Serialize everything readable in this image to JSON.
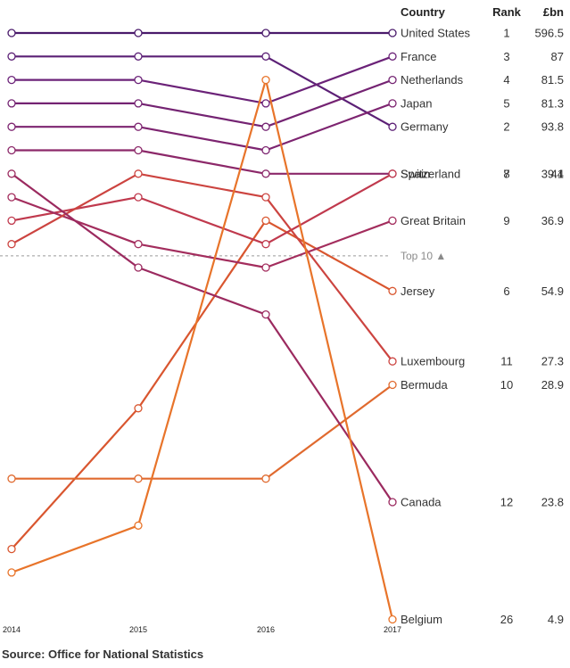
{
  "chart_data": {
    "type": "line",
    "subtype": "bump",
    "x": [
      "2014",
      "2015",
      "2016",
      "2017"
    ],
    "yaxis": "rank (1 at top)",
    "columns": {
      "country": "Country",
      "rank": "Rank",
      "value": "£bn"
    },
    "cutoff": {
      "rank_after": 10,
      "label": "Top 10",
      "marker": "▲"
    },
    "series": [
      {
        "name": "United States",
        "ranks": [
          1,
          1,
          1,
          1
        ],
        "rank": "1",
        "value": "596.5",
        "color": "#4a1a6b"
      },
      {
        "name": "Germany",
        "ranks": [
          2,
          2,
          2,
          5
        ],
        "rank": "2",
        "value": "93.8",
        "color": "#5c2076"
      },
      {
        "name": "France",
        "ranks": [
          3,
          3,
          4,
          2
        ],
        "rank": "3",
        "value": "87",
        "color": "#6b2278"
      },
      {
        "name": "Netherlands",
        "ranks": [
          4,
          4,
          5,
          3
        ],
        "rank": "4",
        "value": "81.5",
        "color": "#742372"
      },
      {
        "name": "Japan",
        "ranks": [
          5,
          5,
          6,
          4
        ],
        "rank": "5",
        "value": "81.3",
        "color": "#7d2470"
      },
      {
        "name": "Jersey",
        "ranks": [
          23,
          17,
          9,
          12
        ],
        "rank": "6",
        "value": "54.9",
        "color": "#d9562f"
      },
      {
        "name": "Switzerland",
        "ranks": [
          6,
          6,
          7,
          7
        ],
        "rank": "7",
        "value": "44",
        "color": "#8c2869"
      },
      {
        "name": "Spain",
        "ranks": [
          9,
          8,
          10,
          7
        ],
        "rank": "8",
        "value": "39.1",
        "color": "#c0394d"
      },
      {
        "name": "Great Britain",
        "ranks": [
          8,
          10,
          11,
          9
        ],
        "rank": "9",
        "value": "36.9",
        "color": "#a32d5d"
      },
      {
        "name": "Bermuda",
        "ranks": [
          20,
          20,
          20,
          16
        ],
        "rank": "10",
        "value": "28.9",
        "color": "#e06a2f"
      },
      {
        "name": "Luxembourg",
        "ranks": [
          10,
          7,
          8,
          15
        ],
        "rank": "11",
        "value": "27.3",
        "color": "#cc4440"
      },
      {
        "name": "Canada",
        "ranks": [
          7,
          11,
          13,
          21
        ],
        "rank": "12",
        "value": "23.8",
        "color": "#9b2a5f"
      },
      {
        "name": "Belgium",
        "ranks": [
          24,
          22,
          3,
          26
        ],
        "rank": "26",
        "value": "4.9",
        "color": "#e8742a"
      }
    ]
  },
  "source": "Source: Office for National Statistics"
}
